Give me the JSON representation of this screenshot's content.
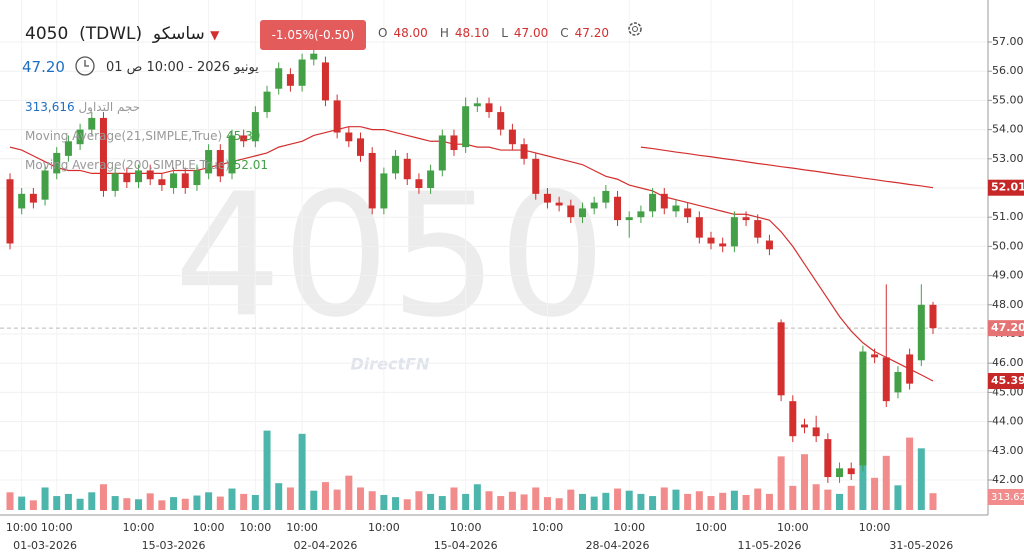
{
  "header": {
    "symbol": "4050",
    "exchange": "(TDWL)",
    "name": "ساسكو",
    "change": "-1.05%(-0.50)",
    "ohlc": [
      {
        "key": "O",
        "value": "48.00"
      },
      {
        "key": "H",
        "value": "48.10"
      },
      {
        "key": "L",
        "value": "47.00"
      },
      {
        "key": "C",
        "value": "47.20"
      }
    ],
    "last": "47.20",
    "datetime": "يونيو 2026 - 10:00 ص 01"
  },
  "chart_data": {
    "type": "candlestick",
    "watermark_brand": "DirectFN",
    "open": [
      52.3,
      51.3,
      51.8,
      51.6,
      52.5,
      53.1,
      53.5,
      54.0,
      54.4,
      51.9,
      52.5,
      52.2,
      52.6,
      52.3,
      52.0,
      52.5,
      52.1,
      52.5,
      53.3,
      52.5,
      53.8,
      53.6,
      54.6,
      55.4,
      55.9,
      55.5,
      56.4,
      56.3,
      55.0,
      53.9,
      53.7,
      53.2,
      51.3,
      52.5,
      53.0,
      52.3,
      52.0,
      52.6,
      53.8,
      53.4,
      54.8,
      54.9,
      54.6,
      54.0,
      53.5,
      53.0,
      51.8,
      51.5,
      51.4,
      51.0,
      51.3,
      51.5,
      51.7,
      50.9,
      51.0,
      51.2,
      51.8,
      51.2,
      51.3,
      51.0,
      50.3,
      50.1,
      50.0,
      51.0,
      50.9,
      50.2,
      47.4,
      44.7,
      43.9,
      43.8,
      43.4,
      42.1,
      42.4,
      42.5,
      46.3,
      46.2,
      45.0,
      46.3,
      46.1,
      48.0
    ],
    "high": [
      52.5,
      52.0,
      52.0,
      52.8,
      53.4,
      53.8,
      54.2,
      54.6,
      54.6,
      52.7,
      52.7,
      52.8,
      52.8,
      52.5,
      52.7,
      52.7,
      52.8,
      53.5,
      53.5,
      54.0,
      54.0,
      54.8,
      55.5,
      56.3,
      56.1,
      56.6,
      57.0,
      56.5,
      55.2,
      54.1,
      53.9,
      53.4,
      52.7,
      53.3,
      53.2,
      52.5,
      52.8,
      54.0,
      54.0,
      55.1,
      55.1,
      55.1,
      54.8,
      54.2,
      53.7,
      53.2,
      52.0,
      51.7,
      51.6,
      51.5,
      51.7,
      52.1,
      51.9,
      51.2,
      51.4,
      52.0,
      52.0,
      51.6,
      51.5,
      51.2,
      50.5,
      50.3,
      51.2,
      51.2,
      51.1,
      50.4,
      47.5,
      44.9,
      44.1,
      44.2,
      43.6,
      42.6,
      42.6,
      46.6,
      46.5,
      48.7,
      45.9,
      46.5,
      48.7,
      48.1
    ],
    "low": [
      49.9,
      51.1,
      51.3,
      51.4,
      52.3,
      52.9,
      53.3,
      53.8,
      51.7,
      51.7,
      52.0,
      52.0,
      52.1,
      51.9,
      51.8,
      51.8,
      51.9,
      52.3,
      52.2,
      52.3,
      53.4,
      53.4,
      54.4,
      55.2,
      55.3,
      55.3,
      56.2,
      54.8,
      53.7,
      53.4,
      52.9,
      51.1,
      51.1,
      52.3,
      52.1,
      51.8,
      51.8,
      52.4,
      53.1,
      53.2,
      54.6,
      54.4,
      53.8,
      53.3,
      52.8,
      51.6,
      51.3,
      51.2,
      50.8,
      50.8,
      51.1,
      51.3,
      50.7,
      50.3,
      50.8,
      51.0,
      51.1,
      51.0,
      50.8,
      50.1,
      49.9,
      49.8,
      49.8,
      50.7,
      50.1,
      49.7,
      44.7,
      43.3,
      43.6,
      43.3,
      41.9,
      41.9,
      42.0,
      42.3,
      46.0,
      44.5,
      44.8,
      45.1,
      45.9,
      47.0
    ],
    "close": [
      50.1,
      51.8,
      51.5,
      52.6,
      53.2,
      53.6,
      54.0,
      54.4,
      51.9,
      52.5,
      52.2,
      52.6,
      52.3,
      52.1,
      52.5,
      52.0,
      52.6,
      53.3,
      52.4,
      53.8,
      53.6,
      54.6,
      55.3,
      56.1,
      55.5,
      56.4,
      56.6,
      55.0,
      53.9,
      53.6,
      53.1,
      51.3,
      52.5,
      53.1,
      52.3,
      52.0,
      52.6,
      53.8,
      53.3,
      54.8,
      54.9,
      54.6,
      54.0,
      53.5,
      53.0,
      51.8,
      51.5,
      51.4,
      51.0,
      51.3,
      51.5,
      51.9,
      50.9,
      51.0,
      51.2,
      51.8,
      51.3,
      51.4,
      51.0,
      50.3,
      50.1,
      50.0,
      51.0,
      50.9,
      50.3,
      49.9,
      44.9,
      43.5,
      43.8,
      43.5,
      42.1,
      42.4,
      42.2,
      46.4,
      46.2,
      44.7,
      45.7,
      45.3,
      48.0,
      47.2
    ],
    "volume": [
      330000,
      250000,
      180000,
      420000,
      260000,
      300000,
      210000,
      330000,
      480000,
      260000,
      220000,
      200000,
      310000,
      180000,
      240000,
      210000,
      270000,
      330000,
      250000,
      400000,
      300000,
      280000,
      1480000,
      500000,
      420000,
      1420000,
      360000,
      520000,
      380000,
      640000,
      420000,
      350000,
      280000,
      240000,
      200000,
      350000,
      300000,
      260000,
      420000,
      300000,
      480000,
      350000,
      260000,
      340000,
      290000,
      420000,
      240000,
      220000,
      380000,
      300000,
      250000,
      320000,
      400000,
      360000,
      300000,
      260000,
      420000,
      380000,
      300000,
      350000,
      260000,
      320000,
      360000,
      280000,
      400000,
      300000,
      1000000,
      450000,
      1040000,
      480000,
      380000,
      300000,
      450000,
      2200000,
      600000,
      1010000,
      460000,
      1350000,
      1150000,
      313616
    ],
    "series": [
      {
        "name": "Moving Average(21,SIMPLE,True)",
        "color": "#d32f2f",
        "values": [
          53.4,
          53.3,
          53.1,
          52.9,
          52.7,
          52.6,
          52.6,
          52.5,
          52.5,
          52.5,
          52.5,
          52.5,
          52.5,
          52.5,
          52.6,
          52.6,
          52.6,
          52.7,
          52.8,
          52.9,
          53.0,
          53.1,
          53.2,
          53.4,
          53.5,
          53.6,
          53.8,
          53.9,
          54.0,
          54.1,
          54.1,
          54.0,
          54.0,
          53.9,
          53.8,
          53.7,
          53.6,
          53.6,
          53.5,
          53.5,
          53.4,
          53.4,
          53.3,
          53.3,
          53.3,
          53.2,
          53.1,
          53.0,
          52.9,
          52.8,
          52.6,
          52.4,
          52.3,
          52.1,
          52.0,
          51.9,
          51.7,
          51.6,
          51.5,
          51.4,
          51.3,
          51.2,
          51.1,
          51.1,
          51.0,
          50.9,
          50.5,
          50.0,
          49.4,
          48.8,
          48.2,
          47.6,
          47.1,
          46.7,
          46.4,
          46.2,
          46.0,
          45.8,
          45.6,
          45.39
        ]
      },
      {
        "name": "Moving Average(200,SIMPLE,True)",
        "color": "#d32f2f",
        "values": [
          null,
          null,
          null,
          null,
          null,
          null,
          null,
          null,
          null,
          null,
          null,
          null,
          null,
          null,
          null,
          null,
          null,
          null,
          null,
          null,
          null,
          null,
          null,
          null,
          null,
          null,
          null,
          null,
          null,
          null,
          null,
          null,
          null,
          null,
          null,
          null,
          null,
          null,
          null,
          null,
          null,
          null,
          null,
          null,
          null,
          null,
          null,
          null,
          null,
          null,
          null,
          null,
          null,
          null,
          53.4,
          53.35,
          53.29,
          53.23,
          53.18,
          53.12,
          53.07,
          53.01,
          52.96,
          52.9,
          52.84,
          52.79,
          52.73,
          52.68,
          52.62,
          52.57,
          52.51,
          52.45,
          52.4,
          52.34,
          52.29,
          52.23,
          52.18,
          52.12,
          52.07,
          52.01
        ]
      }
    ],
    "volume_legend": {
      "name": "حجم التداول",
      "value": "313,616"
    },
    "volume_label": "313.62",
    "ylim": [
      42,
      57
    ],
    "yticks": [
      {
        "value": 42,
        "label": "42.00"
      },
      {
        "value": 43,
        "label": "43.00"
      },
      {
        "value": 44,
        "label": "44.00"
      },
      {
        "value": 45,
        "label": "45.00"
      },
      {
        "value": 46,
        "label": "46.00"
      },
      {
        "value": 47,
        "label": "47.00"
      },
      {
        "value": 48,
        "label": "48.00"
      },
      {
        "value": 49,
        "label": "49.00"
      },
      {
        "value": 50,
        "label": "50.00"
      },
      {
        "value": 51,
        "label": "51.00"
      },
      {
        "value": 52,
        "label": "52.00"
      },
      {
        "value": 53,
        "label": "53.00"
      },
      {
        "value": 54,
        "label": "54.00"
      },
      {
        "value": 55,
        "label": "55.00"
      },
      {
        "value": 56,
        "label": "56.00"
      },
      {
        "value": 57,
        "label": "57.00"
      }
    ],
    "price_markers": [
      {
        "value": 52.01,
        "label": "52.01",
        "color": "#c62828"
      },
      {
        "value": 47.2,
        "label": "47.20",
        "color": "#e57373"
      },
      {
        "value": 45.39,
        "label": "45.39",
        "color": "#c62828"
      }
    ],
    "time_labels": [
      {
        "index": 1,
        "label": "10:00"
      },
      {
        "index": 4,
        "label": "10:00"
      },
      {
        "index": 11,
        "label": "10:00"
      },
      {
        "index": 17,
        "label": "10:00"
      },
      {
        "index": 21,
        "label": "10:00"
      },
      {
        "index": 25,
        "label": "10:00"
      },
      {
        "index": 32,
        "label": "10:00"
      },
      {
        "index": 39,
        "label": "10:00"
      },
      {
        "index": 46,
        "label": "10:00"
      },
      {
        "index": 53,
        "label": "10:00"
      },
      {
        "index": 60,
        "label": "10:00"
      },
      {
        "index": 67,
        "label": "10:00"
      },
      {
        "index": 74,
        "label": "10:00"
      }
    ],
    "date_labels": [
      {
        "index": 3,
        "label": "01-03-2026"
      },
      {
        "index": 14,
        "label": "15-03-2026"
      },
      {
        "index": 27,
        "label": "02-04-2026"
      },
      {
        "index": 39,
        "label": "15-04-2026"
      },
      {
        "index": 52,
        "label": "28-04-2026"
      },
      {
        "index": 65,
        "label": "11-05-2026"
      },
      {
        "index": 78,
        "label": "31-05-2026"
      }
    ],
    "up_color": "#43a047",
    "down_color": "#d32f2f",
    "up_volume_color": "#4db6ac",
    "down_volume_color": "#f28b8b"
  }
}
